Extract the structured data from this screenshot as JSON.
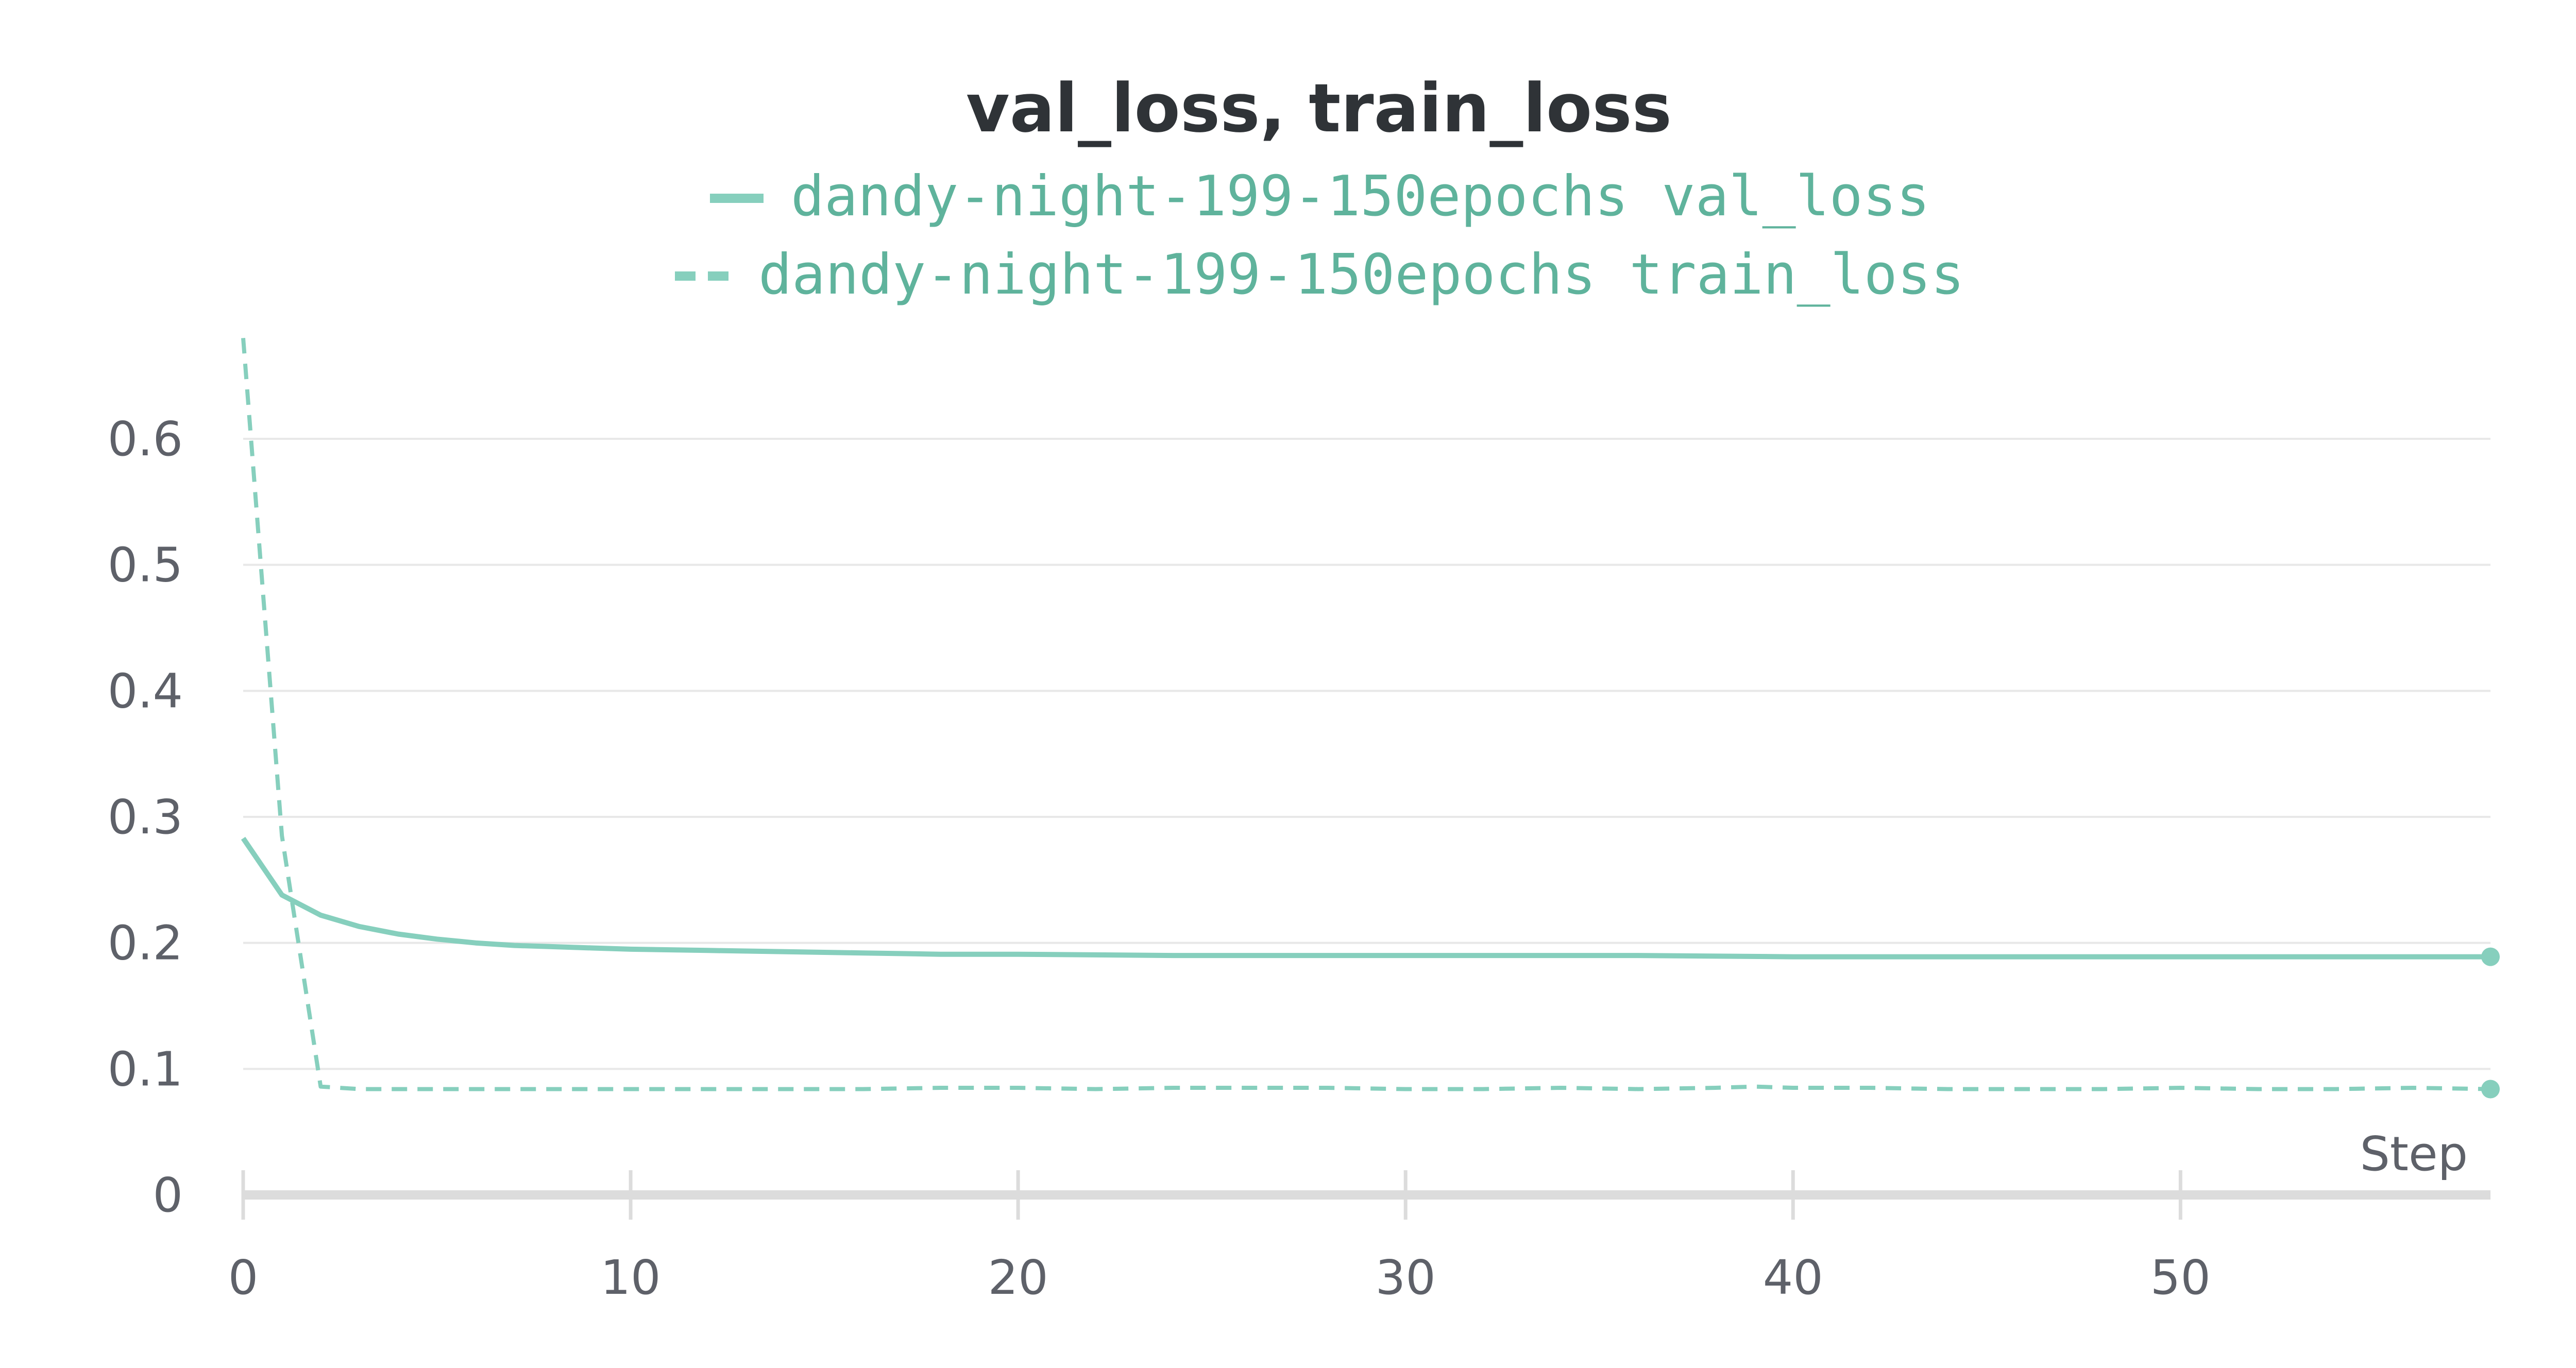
{
  "chart_data": {
    "type": "line",
    "title": "val_loss, train_loss",
    "xlabel": "Step",
    "ylabel": "",
    "xlim": [
      0,
      58
    ],
    "ylim": [
      0,
      0.68
    ],
    "x_ticks": [
      0,
      10,
      20,
      30,
      40,
      50
    ],
    "y_ticks": [
      0,
      0.1,
      0.2,
      0.3,
      0.4,
      0.5,
      0.6
    ],
    "x_tick_labels": [
      "0",
      "10",
      "20",
      "30",
      "40",
      "50"
    ],
    "y_tick_labels": [
      "0",
      "0.1",
      "0.2",
      "0.3",
      "0.4",
      "0.5",
      "0.6"
    ],
    "grid": true,
    "legend_position": "top-center",
    "colors": {
      "series": "#86cfbd",
      "legend_text": "#5fb39c",
      "grid": "#e8e8e8",
      "axis": "#dcdcdc"
    },
    "series": [
      {
        "name": "dandy-night-199-150epochs val_loss",
        "style": "solid",
        "end_marker": true,
        "x": [
          0,
          1,
          2,
          3,
          4,
          5,
          6,
          7,
          8,
          9,
          10,
          12,
          14,
          16,
          18,
          20,
          24,
          28,
          32,
          36,
          40,
          44,
          48,
          52,
          56,
          58
        ],
        "values": [
          0.283,
          0.238,
          0.222,
          0.213,
          0.207,
          0.203,
          0.2,
          0.198,
          0.197,
          0.196,
          0.195,
          0.194,
          0.193,
          0.192,
          0.191,
          0.191,
          0.19,
          0.19,
          0.19,
          0.19,
          0.189,
          0.189,
          0.189,
          0.189,
          0.189,
          0.189
        ]
      },
      {
        "name": "dandy-night-199-150epochs train_loss",
        "style": "dashed",
        "end_marker": true,
        "x": [
          0,
          1,
          2,
          3,
          4,
          6,
          8,
          10,
          12,
          14,
          16,
          18,
          20,
          22,
          24,
          26,
          28,
          30,
          32,
          34,
          36,
          38,
          39,
          40,
          42,
          44,
          46,
          48,
          50,
          52,
          54,
          56,
          58
        ],
        "values": [
          0.68,
          0.285,
          0.086,
          0.084,
          0.084,
          0.084,
          0.084,
          0.084,
          0.084,
          0.084,
          0.084,
          0.085,
          0.085,
          0.084,
          0.085,
          0.085,
          0.085,
          0.084,
          0.084,
          0.085,
          0.084,
          0.085,
          0.086,
          0.085,
          0.085,
          0.084,
          0.084,
          0.084,
          0.085,
          0.084,
          0.084,
          0.085,
          0.084
        ]
      }
    ]
  }
}
